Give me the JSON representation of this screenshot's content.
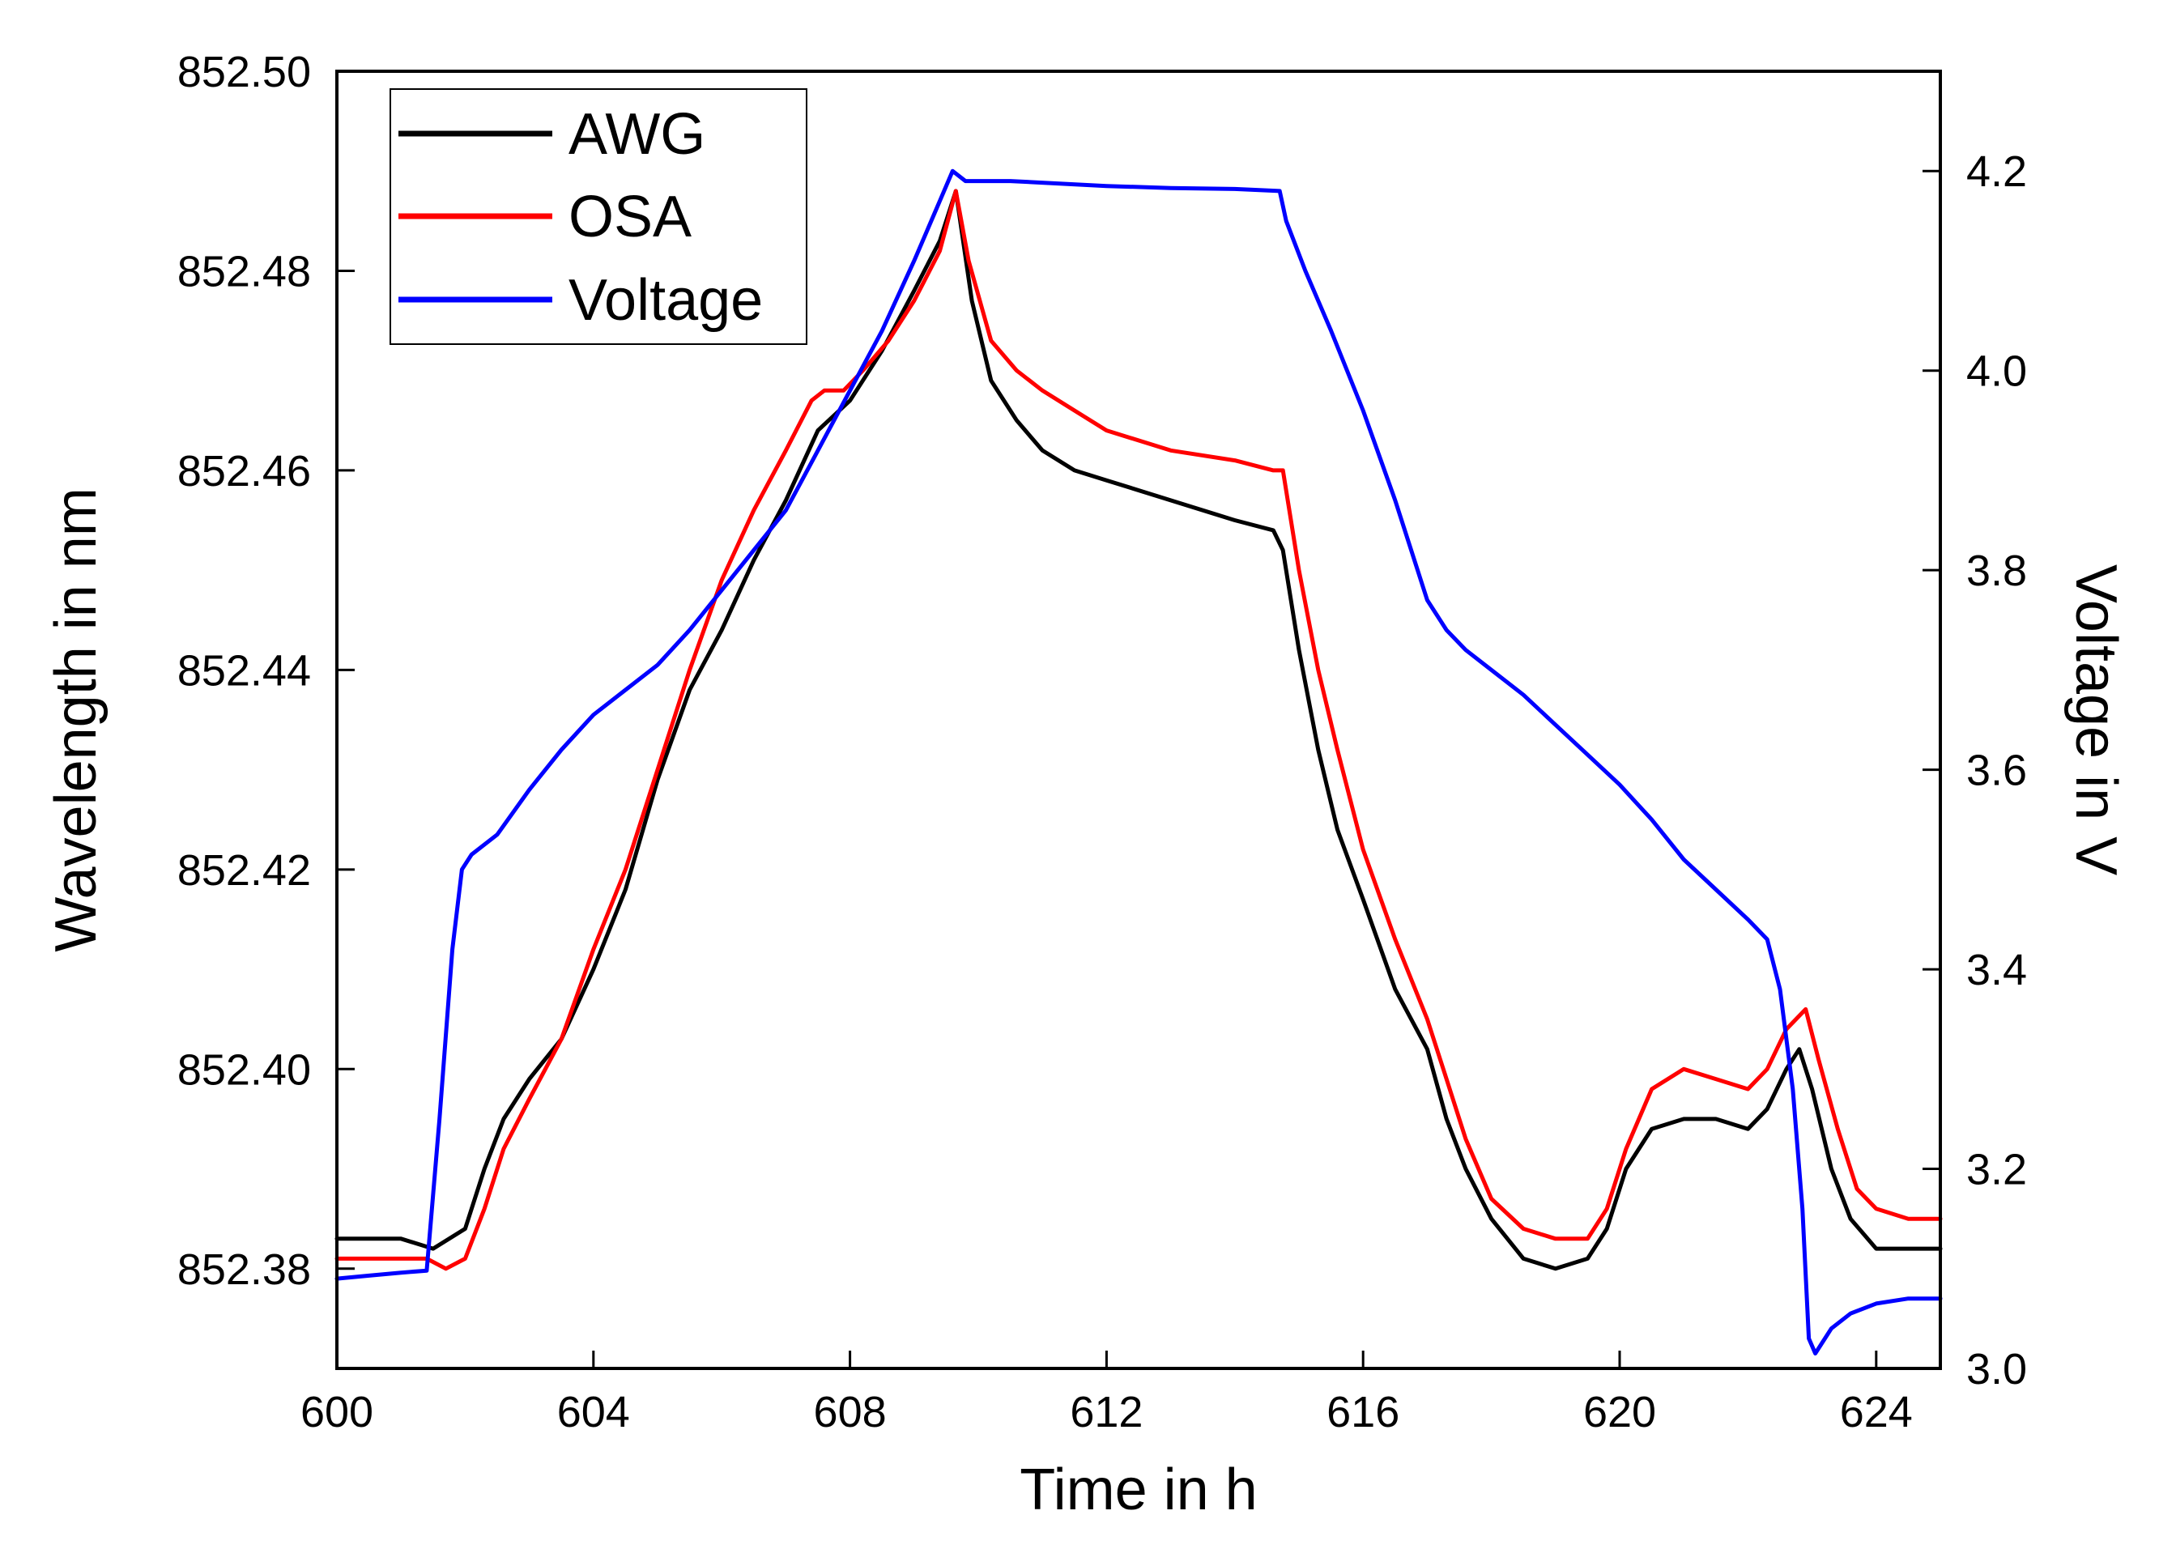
{
  "chart_data": {
    "type": "line",
    "title": "",
    "xlabel": "Time in h",
    "ylabel": "Wavelength in nm",
    "y2label": "Voltage in V",
    "xlim": [
      600,
      625
    ],
    "ylim": [
      852.37,
      852.5
    ],
    "y2lim": [
      3.0,
      4.3
    ],
    "xticks": [
      600,
      604,
      608,
      612,
      616,
      620,
      624
    ],
    "xtick_labels": [
      "600",
      "604",
      "608",
      "612",
      "616",
      "620",
      "624"
    ],
    "yticks": [
      852.38,
      852.4,
      852.42,
      852.44,
      852.46,
      852.48,
      852.5
    ],
    "ytick_labels": [
      "852.38",
      "852.40",
      "852.42",
      "852.44",
      "852.46",
      "852.48",
      "852.50"
    ],
    "y2ticks": [
      3.0,
      3.2,
      3.4,
      3.6,
      3.8,
      4.0,
      4.2
    ],
    "y2tick_labels": [
      "3.0",
      "3.2",
      "3.4",
      "3.6",
      "3.8",
      "4.0",
      "4.2"
    ],
    "grid": false,
    "legend_position": "top-left",
    "series": [
      {
        "name": "AWG",
        "axis": "left",
        "color": "#000000",
        "x": [
          600.0,
          601.0,
          601.5,
          602.0,
          602.3,
          602.6,
          603.0,
          603.5,
          604.0,
          604.5,
          605.0,
          605.5,
          606.0,
          606.5,
          607.0,
          607.5,
          608.0,
          608.5,
          609.0,
          609.4,
          609.65,
          609.9,
          610.2,
          610.6,
          611.0,
          611.5,
          612.0,
          613.0,
          614.0,
          614.6,
          614.75,
          615.0,
          615.3,
          615.6,
          616.0,
          616.5,
          617.0,
          617.3,
          617.6,
          618.0,
          618.5,
          619.0,
          619.5,
          619.8,
          620.1,
          620.5,
          621.0,
          621.5,
          622.0,
          622.3,
          622.6,
          622.8,
          623.0,
          623.3,
          623.6,
          624.0,
          624.5,
          625.0
        ],
        "y": [
          852.383,
          852.383,
          852.382,
          852.384,
          852.39,
          852.395,
          852.399,
          852.403,
          852.41,
          852.418,
          852.429,
          852.438,
          852.444,
          852.451,
          852.457,
          852.464,
          852.467,
          852.472,
          852.478,
          852.483,
          852.488,
          852.477,
          852.469,
          852.465,
          852.462,
          852.46,
          852.459,
          852.457,
          852.455,
          852.454,
          852.452,
          852.442,
          852.432,
          852.424,
          852.417,
          852.408,
          852.402,
          852.395,
          852.39,
          852.385,
          852.381,
          852.38,
          852.381,
          852.384,
          852.39,
          852.394,
          852.395,
          852.395,
          852.394,
          852.396,
          852.4,
          852.402,
          852.398,
          852.39,
          852.385,
          852.382,
          852.382,
          852.382
        ]
      },
      {
        "name": "OSA",
        "axis": "left",
        "color": "#ff0000",
        "x": [
          600.0,
          601.0,
          601.4,
          601.7,
          602.0,
          602.3,
          602.6,
          603.0,
          603.5,
          604.0,
          604.5,
          605.0,
          605.5,
          606.0,
          606.5,
          607.0,
          607.4,
          607.6,
          607.9,
          608.2,
          608.6,
          609.0,
          609.4,
          609.65,
          609.85,
          610.2,
          610.6,
          611.0,
          611.5,
          612.0,
          613.0,
          614.0,
          614.6,
          614.75,
          615.0,
          615.3,
          615.6,
          616.0,
          616.5,
          617.0,
          617.3,
          617.6,
          618.0,
          618.5,
          619.0,
          619.5,
          619.8,
          620.1,
          620.5,
          621.0,
          621.5,
          622.0,
          622.3,
          622.6,
          622.9,
          623.1,
          623.4,
          623.7,
          624.0,
          624.5,
          625.0
        ],
        "y": [
          852.381,
          852.381,
          852.381,
          852.38,
          852.381,
          852.386,
          852.392,
          852.397,
          852.403,
          852.412,
          852.42,
          852.43,
          852.44,
          852.449,
          852.456,
          852.462,
          852.467,
          852.468,
          852.468,
          852.47,
          852.473,
          852.477,
          852.482,
          852.488,
          852.481,
          852.473,
          852.47,
          852.468,
          852.466,
          852.464,
          852.462,
          852.461,
          852.46,
          852.46,
          852.45,
          852.44,
          852.432,
          852.422,
          852.413,
          852.405,
          852.399,
          852.393,
          852.387,
          852.384,
          852.383,
          852.383,
          852.386,
          852.392,
          852.398,
          852.4,
          852.399,
          852.398,
          852.4,
          852.404,
          852.406,
          852.401,
          852.394,
          852.388,
          852.386,
          852.385,
          852.385
        ]
      },
      {
        "name": "Voltage",
        "axis": "right",
        "color": "#0000ff",
        "x": [
          600.0,
          600.5,
          601.0,
          601.4,
          601.6,
          601.8,
          601.95,
          602.1,
          602.5,
          603.0,
          603.5,
          604.0,
          604.5,
          605.0,
          605.5,
          606.0,
          606.5,
          607.0,
          607.5,
          608.0,
          608.5,
          609.0,
          609.4,
          609.6,
          609.8,
          610.5,
          612.0,
          613.0,
          614.0,
          614.7,
          614.8,
          615.1,
          615.5,
          616.0,
          616.5,
          617.0,
          617.3,
          617.6,
          618.0,
          618.5,
          619.0,
          619.5,
          620.0,
          620.5,
          621.0,
          621.5,
          622.0,
          622.3,
          622.5,
          622.7,
          622.85,
          622.95,
          623.05,
          623.3,
          623.6,
          624.0,
          624.5,
          625.0
        ],
        "y": [
          3.09,
          3.093,
          3.096,
          3.098,
          3.25,
          3.42,
          3.5,
          3.515,
          3.535,
          3.58,
          3.62,
          3.655,
          3.68,
          3.705,
          3.74,
          3.78,
          3.82,
          3.86,
          3.92,
          3.98,
          4.04,
          4.11,
          4.17,
          4.2,
          4.19,
          4.19,
          4.185,
          4.183,
          4.182,
          4.18,
          4.15,
          4.1,
          4.04,
          3.96,
          3.87,
          3.77,
          3.74,
          3.72,
          3.7,
          3.675,
          3.645,
          3.615,
          3.585,
          3.55,
          3.51,
          3.48,
          3.45,
          3.43,
          3.38,
          3.28,
          3.16,
          3.03,
          3.015,
          3.04,
          3.055,
          3.065,
          3.07,
          3.07
        ]
      }
    ]
  }
}
